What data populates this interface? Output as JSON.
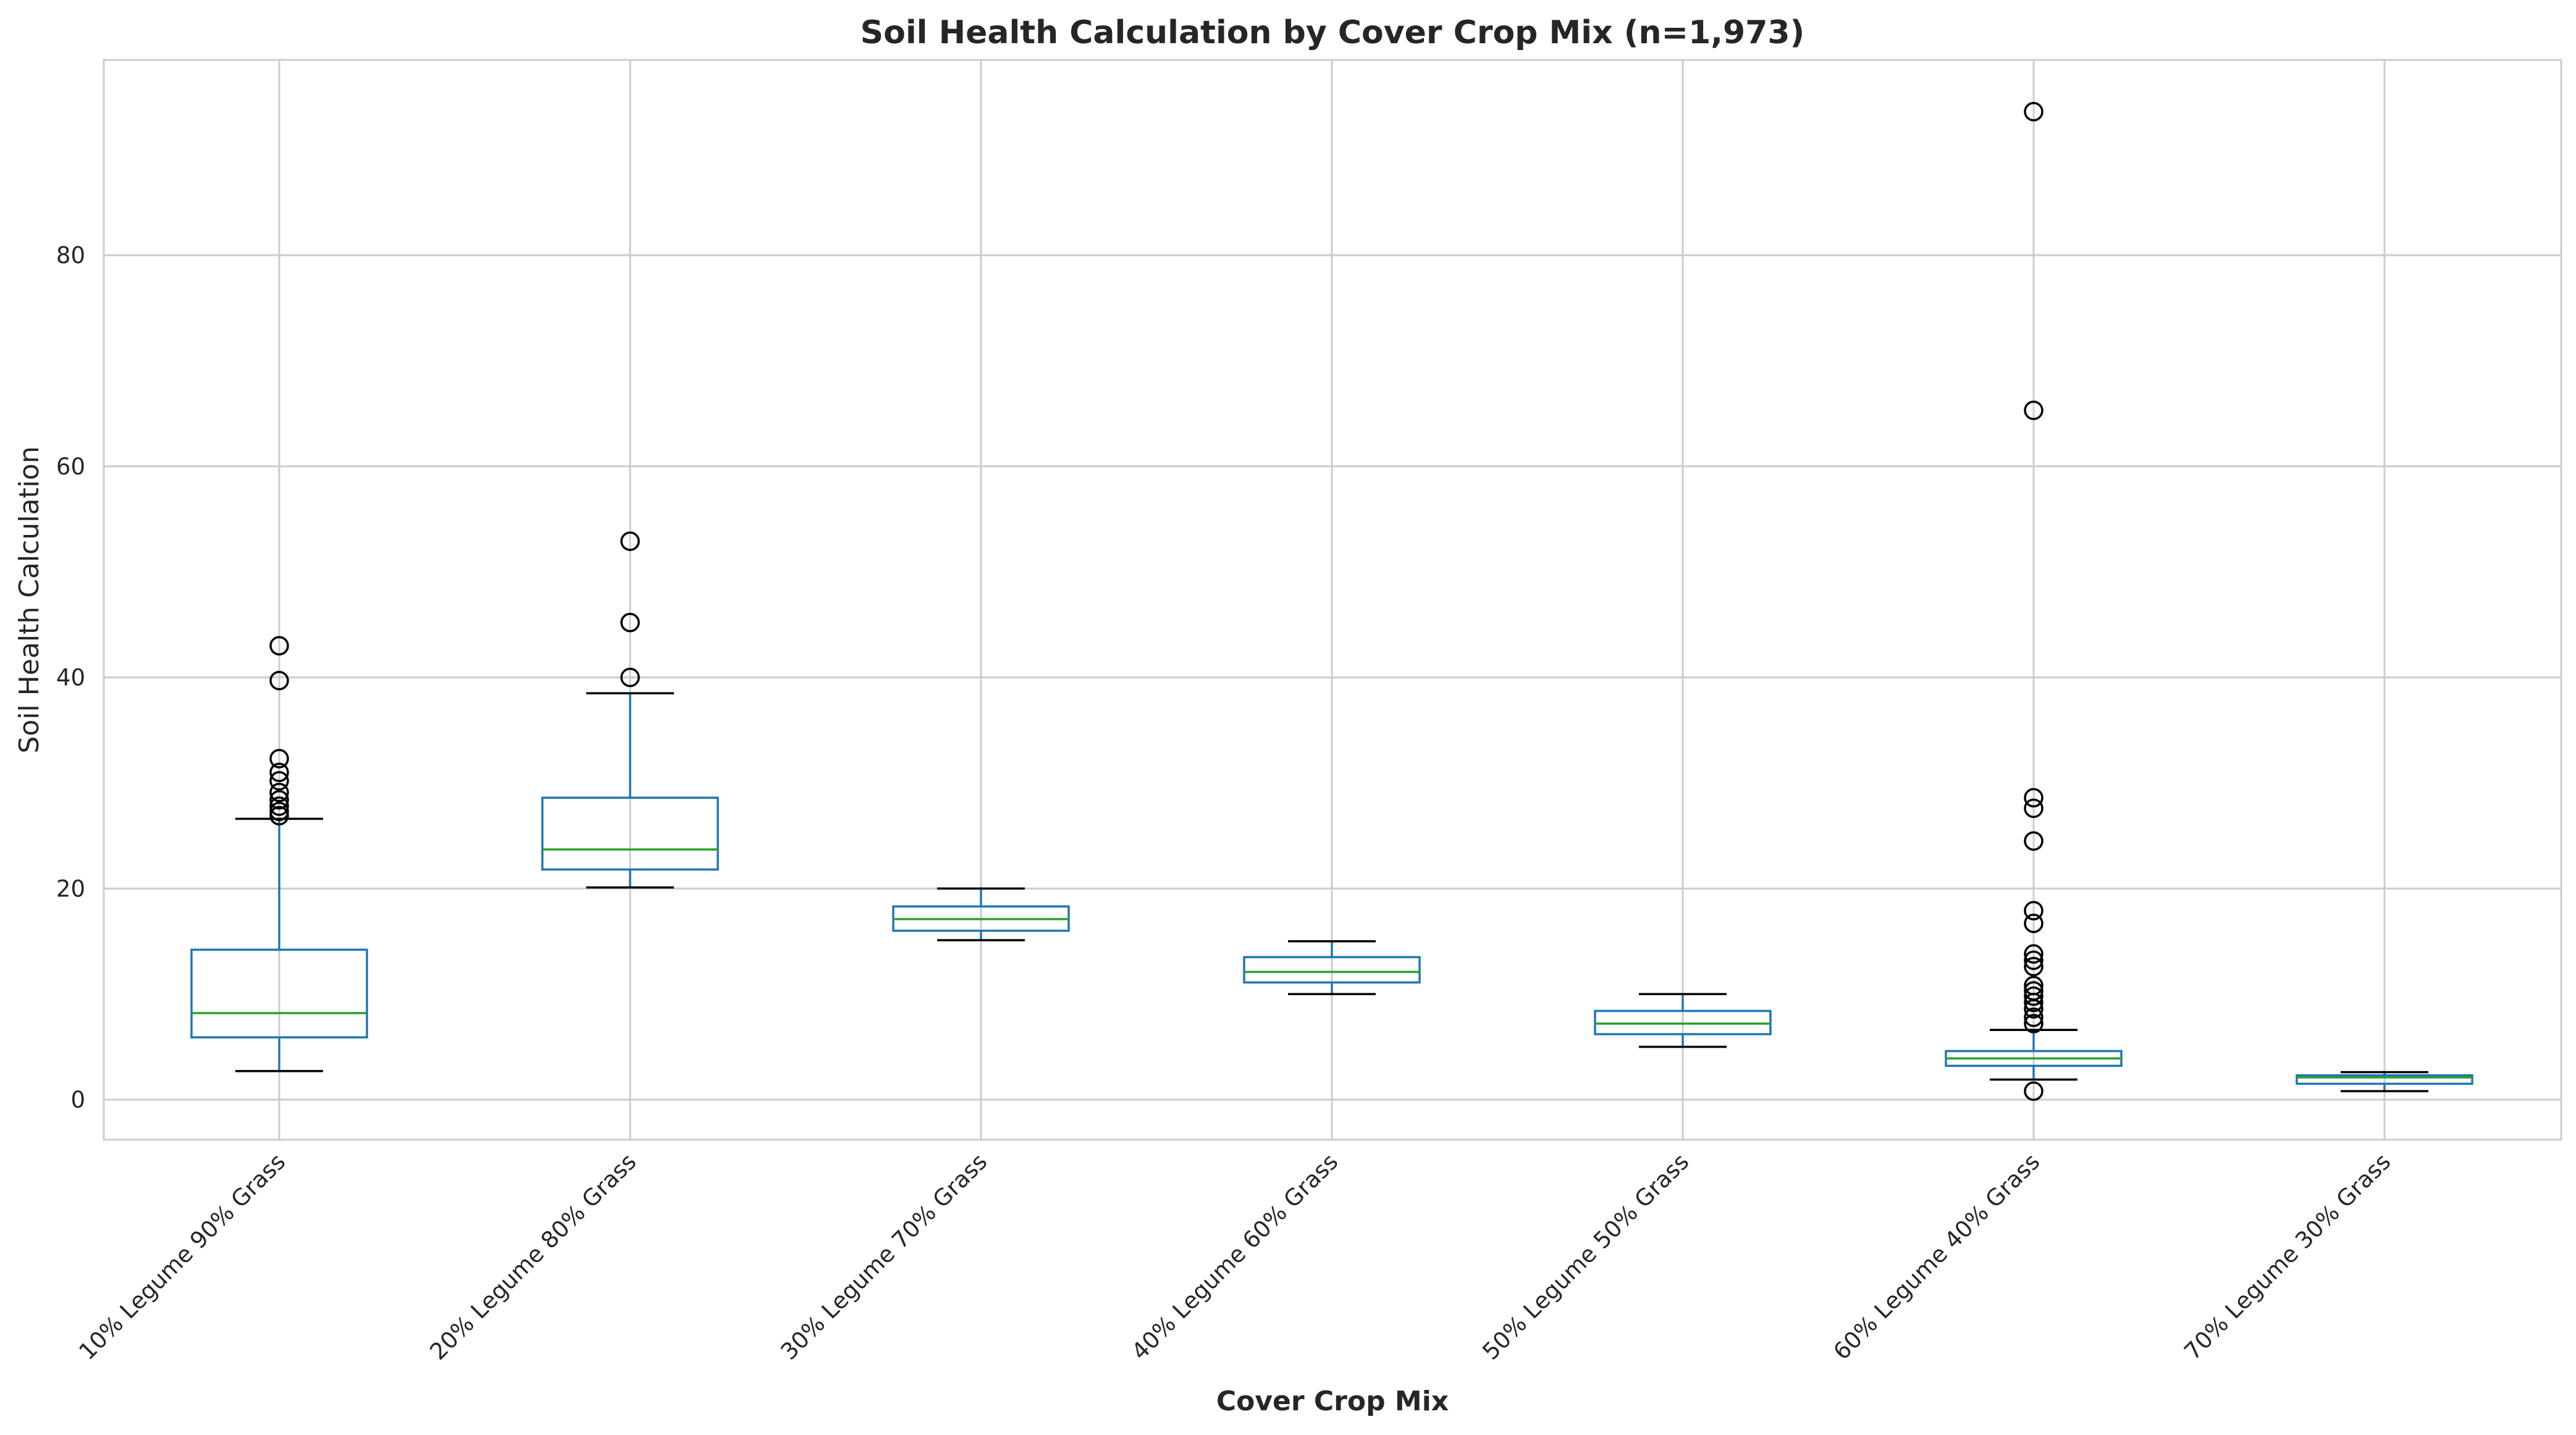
{
  "chart_data": {
    "type": "box",
    "title": "Soil Health Calculation by Cover Crop Mix (n=1,973)",
    "xlabel": "Cover Crop Mix",
    "ylabel": "Soil Health Calculation",
    "ylim": [
      -3.8,
      98.5
    ],
    "yticks": [
      0,
      20,
      40,
      60,
      80
    ],
    "grid": true,
    "colors": {
      "box": "#1f77b4",
      "median": "#2ca02c",
      "whisker_cap": "#000000",
      "grid": "#cccccc",
      "frame": "#cccccc"
    },
    "categories": [
      "10% Legume 90% Grass",
      "20% Legume 80% Grass",
      "30% Legume 70% Grass",
      "40% Legume 60% Grass",
      "50% Legume 50% Grass",
      "60% Legume 40% Grass",
      "70% Legume 30% Grass"
    ],
    "boxes": [
      {
        "whisker_low": 2.7,
        "q1": 5.9,
        "median": 8.2,
        "q3": 14.2,
        "whisker_high": 26.6,
        "outliers": [
          26.9,
          27.3,
          27.8,
          28.4,
          29.1,
          30.2,
          31.0,
          32.3,
          39.7,
          43.0
        ]
      },
      {
        "whisker_low": 20.1,
        "q1": 21.8,
        "median": 23.7,
        "q3": 28.6,
        "whisker_high": 38.5,
        "outliers": [
          40.0,
          45.2,
          52.9
        ]
      },
      {
        "whisker_low": 15.1,
        "q1": 16.0,
        "median": 17.1,
        "q3": 18.3,
        "whisker_high": 20.0,
        "outliers": []
      },
      {
        "whisker_low": 10.0,
        "q1": 11.1,
        "median": 12.1,
        "q3": 13.5,
        "whisker_high": 15.0,
        "outliers": []
      },
      {
        "whisker_low": 5.0,
        "q1": 6.2,
        "median": 7.2,
        "q3": 8.4,
        "whisker_high": 10.0,
        "outliers": []
      },
      {
        "whisker_low": 1.9,
        "q1": 3.2,
        "median": 3.9,
        "q3": 4.6,
        "whisker_high": 6.6,
        "outliers": [
          0.8,
          7.2,
          7.8,
          8.6,
          9.2,
          9.8,
          10.3,
          10.8,
          12.6,
          13.2,
          13.8,
          16.7,
          17.9,
          24.5,
          27.6,
          28.6,
          65.3,
          93.6
        ]
      },
      {
        "whisker_low": 0.8,
        "q1": 1.5,
        "median": 2.1,
        "q3": 2.3,
        "whisker_high": 2.6,
        "outliers": []
      }
    ]
  }
}
